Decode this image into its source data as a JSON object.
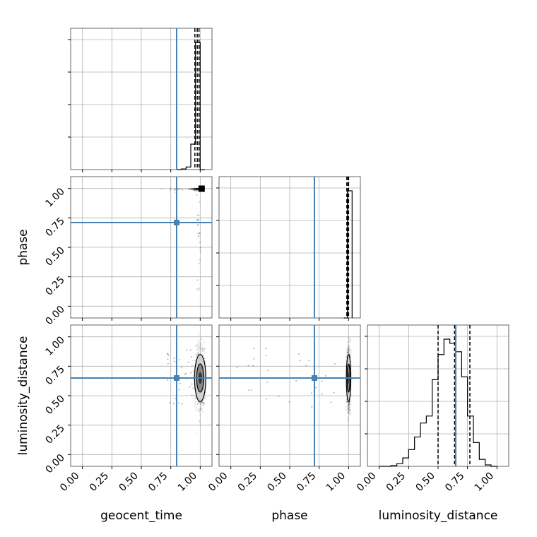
{
  "chart_data": {
    "type": "scatter",
    "kind": "corner plot",
    "parameters": [
      "geocent_time",
      "phase",
      "luminosity_distance"
    ],
    "axis_labels": {
      "x": [
        "geocent_time",
        "phase",
        "luminosity_distance"
      ],
      "y": [
        "",
        "phase",
        "luminosity_distance"
      ]
    },
    "tick_values": [
      0.0,
      0.25,
      0.5,
      0.75,
      1.0
    ],
    "tick_labels": [
      "0.00",
      "0.25",
      "0.50",
      "0.75",
      "1.00"
    ],
    "axis_range": [
      -0.1,
      1.1
    ],
    "grid": true,
    "truth_color": "#4682b4",
    "truths": {
      "geocent_time": 0.8,
      "phase": 0.71,
      "luminosity_distance": 0.65
    },
    "histograms": {
      "geocent_time": {
        "bin_edges": [
          0.8,
          0.84,
          0.88,
          0.92,
          0.96,
          1.0,
          1.04
        ],
        "counts": [
          0,
          0.005,
          0.02,
          0.2,
          1.0,
          0
        ],
        "quantiles": [
          0.955,
          0.975,
          0.99
        ]
      },
      "phase": {
        "bin_edges": [
          0.96,
          0.99,
          1.03
        ],
        "counts": [
          0,
          1.0
        ],
        "quantiles": [
          0.985,
          0.995,
          1.0
        ]
      },
      "luminosity_distance": {
        "bin_edges": [
          0.0,
          0.05,
          0.1,
          0.15,
          0.2,
          0.25,
          0.3,
          0.35,
          0.4,
          0.45,
          0.5,
          0.55,
          0.6,
          0.65,
          0.7,
          0.75,
          0.8,
          0.85,
          0.9,
          0.95,
          1.0
        ],
        "counts": [
          0,
          0,
          0.005,
          0.02,
          0.06,
          0.12,
          0.21,
          0.31,
          0.36,
          0.62,
          0.8,
          0.91,
          0.88,
          0.82,
          0.64,
          0.36,
          0.17,
          0.05,
          0.01,
          0
        ],
        "quantiles": [
          0.5,
          0.64,
          0.77
        ]
      }
    },
    "pairs": [
      {
        "x": "geocent_time",
        "y": "phase",
        "center": [
          1.0,
          1.0
        ]
      },
      {
        "x": "geocent_time",
        "y": "luminosity_distance",
        "center": [
          1.0,
          0.65
        ]
      },
      {
        "x": "phase",
        "y": "luminosity_distance",
        "center": [
          1.0,
          0.65
        ]
      }
    ]
  }
}
